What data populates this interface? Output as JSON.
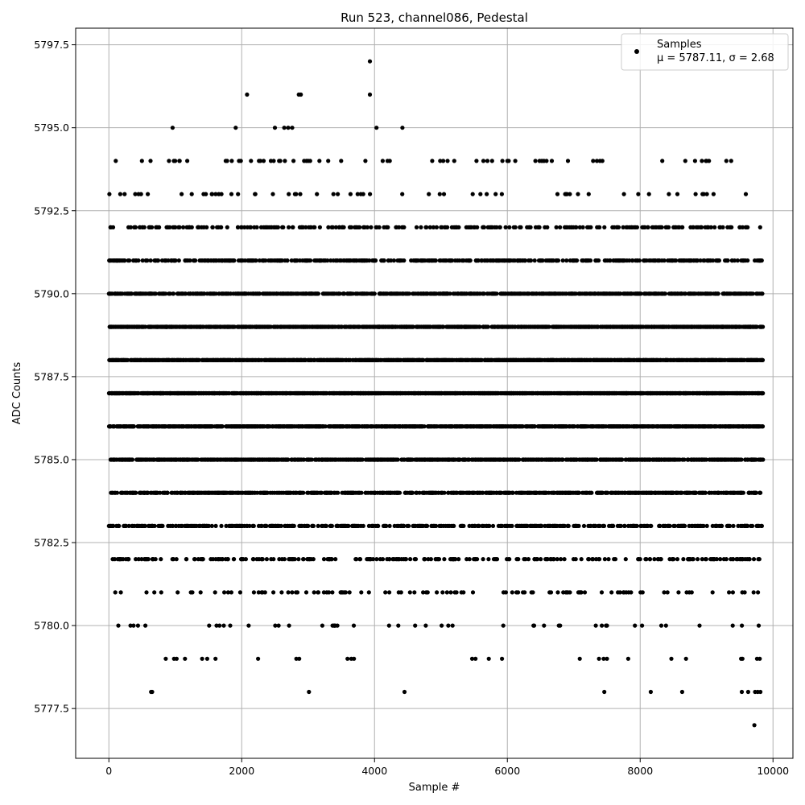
{
  "chart_data": {
    "type": "scatter",
    "title": "Run 523, channel086, Pedestal",
    "xlabel": "Sample #",
    "ylabel": "ADC Counts",
    "xlim": [
      -500,
      10300
    ],
    "ylim": [
      5776.0,
      5798.0
    ],
    "x_ticks": [
      0,
      2000,
      4000,
      6000,
      8000,
      10000
    ],
    "x_tick_labels": [
      "0",
      "2000",
      "4000",
      "6000",
      "8000",
      "10000"
    ],
    "y_ticks": [
      5777.5,
      5780.0,
      5782.5,
      5785.0,
      5787.5,
      5790.0,
      5792.5,
      5795.0,
      5797.5
    ],
    "y_tick_labels": [
      "5777.5",
      "5780.0",
      "5782.5",
      "5785.0",
      "5787.5",
      "5790.0",
      "5792.5",
      "5795.0",
      "5797.5"
    ],
    "grid": true,
    "legend": {
      "placement": "top-right",
      "entries": [
        {
          "name": "Samples",
          "stats": "μ = 5787.11, σ = 2.68"
        }
      ]
    },
    "series": [
      {
        "name": "Samples",
        "color": "#000000",
        "n_samples": 9850,
        "mean": 5787.11,
        "sigma": 2.68,
        "outliers": [
          {
            "x": 960,
            "y": 5795
          },
          {
            "x": 1910,
            "y": 5795
          },
          {
            "x": 2080,
            "y": 5796
          },
          {
            "x": 2500,
            "y": 5795
          },
          {
            "x": 2640,
            "y": 5795
          },
          {
            "x": 2700,
            "y": 5795
          },
          {
            "x": 2760,
            "y": 5795
          },
          {
            "x": 2860,
            "y": 5796
          },
          {
            "x": 2890,
            "y": 5796
          },
          {
            "x": 3930,
            "y": 5797
          },
          {
            "x": 3930,
            "y": 5796
          },
          {
            "x": 4030,
            "y": 5795
          },
          {
            "x": 4420,
            "y": 5795
          },
          {
            "x": 1180,
            "y": 5794
          },
          {
            "x": 1780,
            "y": 5794
          },
          {
            "x": 1850,
            "y": 5794
          },
          {
            "x": 1960,
            "y": 5794
          },
          {
            "x": 2140,
            "y": 5794
          },
          {
            "x": 2260,
            "y": 5794
          },
          {
            "x": 2330,
            "y": 5794
          },
          {
            "x": 2440,
            "y": 5794
          },
          {
            "x": 2580,
            "y": 5794
          },
          {
            "x": 2650,
            "y": 5794
          },
          {
            "x": 2780,
            "y": 5794
          },
          {
            "x": 2940,
            "y": 5794
          },
          {
            "x": 3000,
            "y": 5794
          },
          {
            "x": 3170,
            "y": 5794
          },
          {
            "x": 4230,
            "y": 5794
          },
          {
            "x": 5100,
            "y": 5794
          },
          {
            "x": 5200,
            "y": 5794
          },
          {
            "x": 5640,
            "y": 5794
          },
          {
            "x": 5700,
            "y": 5794
          },
          {
            "x": 6020,
            "y": 5794
          },
          {
            "x": 6120,
            "y": 5794
          },
          {
            "x": 6520,
            "y": 5794
          },
          {
            "x": 8990,
            "y": 5794
          },
          {
            "x": 1020,
            "y": 5779
          },
          {
            "x": 1480,
            "y": 5779
          },
          {
            "x": 3650,
            "y": 5779
          },
          {
            "x": 5470,
            "y": 5779
          },
          {
            "x": 5520,
            "y": 5779
          },
          {
            "x": 7090,
            "y": 5779
          },
          {
            "x": 7380,
            "y": 5779
          },
          {
            "x": 7450,
            "y": 5779
          },
          {
            "x": 7500,
            "y": 5779
          },
          {
            "x": 7820,
            "y": 5779
          },
          {
            "x": 8470,
            "y": 5779
          },
          {
            "x": 8690,
            "y": 5779
          },
          {
            "x": 9520,
            "y": 5779
          },
          {
            "x": 9540,
            "y": 5779
          },
          {
            "x": 9760,
            "y": 5779
          },
          {
            "x": 9800,
            "y": 5779
          },
          {
            "x": 7460,
            "y": 5778
          },
          {
            "x": 8160,
            "y": 5778
          },
          {
            "x": 9530,
            "y": 5778
          },
          {
            "x": 9730,
            "y": 5778
          },
          {
            "x": 9770,
            "y": 5778
          },
          {
            "x": 9810,
            "y": 5778
          },
          {
            "x": 9720,
            "y": 5777
          }
        ]
      }
    ]
  }
}
